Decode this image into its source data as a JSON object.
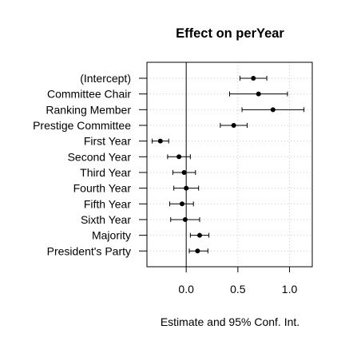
{
  "chart_data": {
    "type": "scatter",
    "title": "Effect on perYear",
    "xlabel": "Estimate and 95% Conf. Int.",
    "ylabel": "",
    "xlim": [
      -0.38,
      1.22
    ],
    "x_ticks": [
      0.0,
      0.5,
      1.0
    ],
    "x_tick_labels": [
      "0.0",
      "0.5",
      "1.0"
    ],
    "grid": true,
    "grid_style": "dotted",
    "zero_line": true,
    "point_color": "#000000",
    "categories": [
      "(Intercept)",
      "Committee Chair",
      "Ranking Member",
      "Prestige Committee",
      "First Year",
      "Second Year",
      "Third Year",
      "Fourth Year",
      "Fifth Year",
      "Sixth Year",
      "Majority",
      "President's Party"
    ],
    "series": [
      {
        "estimates": [
          0.65,
          0.7,
          0.84,
          0.46,
          -0.25,
          -0.07,
          -0.02,
          0.0,
          -0.04,
          -0.01,
          0.13,
          0.11
        ],
        "ci_low": [
          0.52,
          0.42,
          0.54,
          0.33,
          -0.33,
          -0.18,
          -0.13,
          -0.12,
          -0.16,
          -0.15,
          0.04,
          0.03
        ],
        "ci_high": [
          0.78,
          0.98,
          1.14,
          0.59,
          -0.17,
          0.04,
          0.09,
          0.12,
          0.07,
          0.13,
          0.22,
          0.21
        ]
      }
    ]
  }
}
